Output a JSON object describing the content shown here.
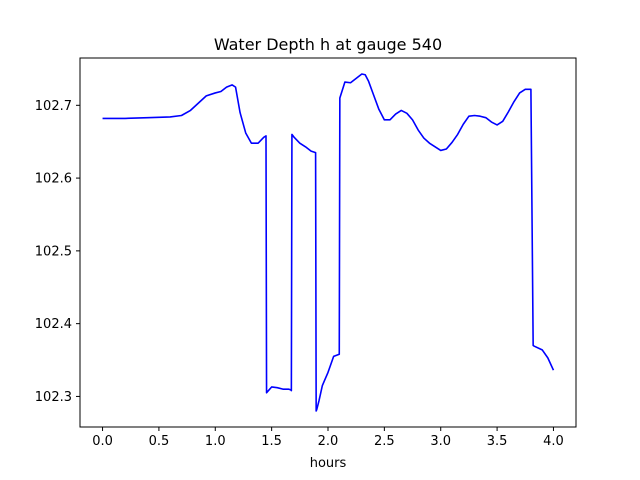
{
  "chart_data": {
    "type": "line",
    "title": "Water Depth h at gauge 540",
    "xlabel": "hours",
    "ylabel": "",
    "xlim": [
      -0.2,
      4.2
    ],
    "ylim": [
      102.258,
      102.765
    ],
    "xticks": [
      0.0,
      0.5,
      1.0,
      1.5,
      2.0,
      2.5,
      3.0,
      3.5,
      4.0
    ],
    "xtick_labels": [
      "0.0",
      "0.5",
      "1.0",
      "1.5",
      "2.0",
      "2.5",
      "3.0",
      "3.5",
      "4.0"
    ],
    "yticks": [
      102.3,
      102.4,
      102.5,
      102.6,
      102.7
    ],
    "ytick_labels": [
      "102.3",
      "102.4",
      "102.5",
      "102.6",
      "102.7"
    ],
    "grid": false,
    "series": [
      {
        "color": "#0000ff",
        "x": [
          0.0,
          0.2,
          0.4,
          0.6,
          0.7,
          0.78,
          0.85,
          0.92,
          1.0,
          1.05,
          1.1,
          1.15,
          1.18,
          1.22,
          1.27,
          1.32,
          1.38,
          1.43,
          1.45,
          1.455,
          1.46,
          1.5,
          1.55,
          1.6,
          1.65,
          1.67,
          1.675,
          1.68,
          1.7,
          1.75,
          1.8,
          1.85,
          1.89,
          1.895,
          1.9,
          1.92,
          1.95,
          2.0,
          2.05,
          2.1,
          2.105,
          2.15,
          2.2,
          2.25,
          2.3,
          2.33,
          2.36,
          2.4,
          2.45,
          2.5,
          2.55,
          2.6,
          2.65,
          2.7,
          2.75,
          2.8,
          2.85,
          2.9,
          2.95,
          3.0,
          3.05,
          3.1,
          3.15,
          3.2,
          3.25,
          3.3,
          3.35,
          3.4,
          3.45,
          3.5,
          3.55,
          3.6,
          3.65,
          3.7,
          3.75,
          3.8,
          3.82,
          3.83,
          3.9,
          3.95,
          4.0
        ],
        "y": [
          102.682,
          102.682,
          102.683,
          102.684,
          102.686,
          102.693,
          102.703,
          102.713,
          102.717,
          102.719,
          102.725,
          102.728,
          102.725,
          102.69,
          102.662,
          102.648,
          102.648,
          102.656,
          102.658,
          102.305,
          102.306,
          102.313,
          102.312,
          102.31,
          102.31,
          102.309,
          102.308,
          102.66,
          102.656,
          102.648,
          102.643,
          102.637,
          102.635,
          102.28,
          102.282,
          102.294,
          102.315,
          102.333,
          102.355,
          102.358,
          102.71,
          102.732,
          102.731,
          102.737,
          102.743,
          102.742,
          102.733,
          102.716,
          102.695,
          102.68,
          102.68,
          102.688,
          102.693,
          102.689,
          102.68,
          102.666,
          102.655,
          102.648,
          102.643,
          102.638,
          102.64,
          102.649,
          102.66,
          102.674,
          102.685,
          102.686,
          102.685,
          102.683,
          102.677,
          102.673,
          102.678,
          102.691,
          102.705,
          102.717,
          102.722,
          102.722,
          102.37,
          102.369,
          102.364,
          102.353,
          102.336
        ]
      }
    ]
  }
}
